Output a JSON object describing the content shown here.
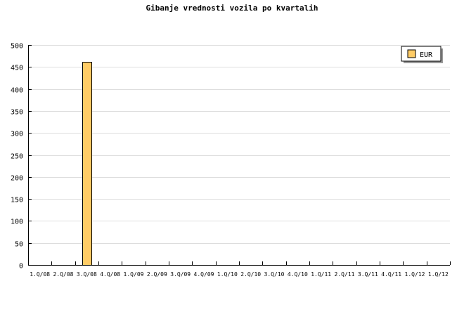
{
  "chart_data": {
    "type": "bar",
    "title": "Gibanje vrednosti vozila po kvartalih",
    "categories": [
      "1.Q/08",
      "2.Q/08",
      "3.Q/08",
      "4.Q/08",
      "1.Q/09",
      "2.Q/09",
      "3.Q/09",
      "4.Q/09",
      "1.Q/10",
      "2.Q/10",
      "3.Q/10",
      "4.Q/10",
      "1.Q/11",
      "2.Q/11",
      "3.Q/11",
      "4.Q/11",
      "1.Q/12",
      "1.Q/12"
    ],
    "series": [
      {
        "name": "EUR",
        "values": [
          0,
          0,
          462,
          0,
          0,
          0,
          0,
          0,
          0,
          0,
          0,
          0,
          0,
          0,
          0,
          0,
          0,
          0
        ],
        "color": "#ffcc66"
      }
    ],
    "ylim": [
      0,
      500
    ],
    "yticks": [
      0,
      50,
      100,
      150,
      200,
      250,
      300,
      350,
      400,
      450,
      500
    ],
    "grid": true,
    "legend": "top-right"
  }
}
